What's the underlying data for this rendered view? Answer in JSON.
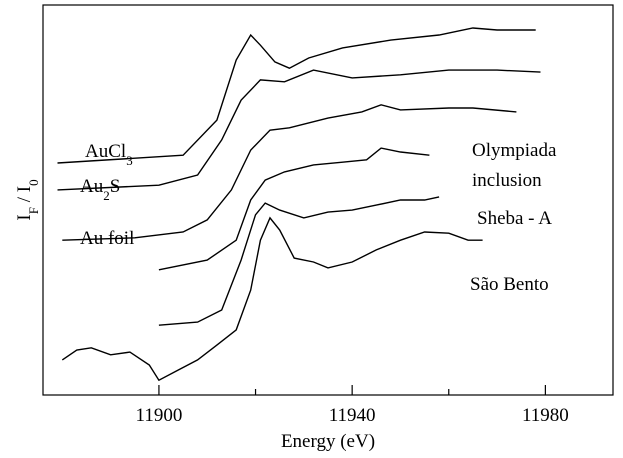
{
  "chart_data": {
    "type": "line",
    "xlabel": "Energy (eV)",
    "ylabel": "IF / I0",
    "xlim": [
      11876,
      11994
    ],
    "xticks": [
      11900,
      11940,
      11980
    ],
    "xminor_ticks": [
      11920,
      11960
    ],
    "ylim": [
      0,
      100
    ],
    "color": "#000000",
    "series": [
      {
        "name": "AuCl3",
        "x": [
          11879,
          11905,
          11912,
          11916,
          11919,
          11921,
          11924,
          11927,
          11931,
          11938,
          11948,
          11958,
          11965,
          11970,
          11978
        ],
        "values": [
          59.5,
          61.5,
          70.5,
          85.9,
          92.3,
          89.7,
          85.4,
          83.8,
          86.4,
          89,
          91,
          92.3,
          94.1,
          93.6,
          93.6
        ]
      },
      {
        "name": "Au2S",
        "x": [
          11879,
          11900,
          11908,
          11913,
          11917,
          11921,
          11926,
          11932,
          11940,
          11950,
          11960,
          11970,
          11979
        ],
        "values": [
          52.6,
          53.8,
          56.4,
          65.4,
          75.6,
          80.8,
          80.3,
          83.3,
          81.3,
          82.1,
          83.3,
          83.3,
          82.8
        ]
      },
      {
        "name": "Au foil",
        "x": [
          11880,
          11895,
          11905,
          11910,
          11915,
          11919,
          11923,
          11927,
          11935,
          11942,
          11946,
          11950,
          11960,
          11965,
          11974
        ],
        "values": [
          39.7,
          40.3,
          41.8,
          44.9,
          52.6,
          62.8,
          67.9,
          68.5,
          71,
          72.6,
          74.4,
          73.1,
          73.6,
          73.6,
          72.6
        ]
      },
      {
        "name": "Olympiada inclusion",
        "x": [
          11900,
          11910,
          11916,
          11919,
          11922,
          11926,
          11932,
          11938,
          11943,
          11946,
          11950,
          11956
        ],
        "values": [
          32.1,
          34.6,
          39.7,
          50,
          55.1,
          57.2,
          59,
          59.7,
          60.3,
          63.3,
          62.3,
          61.5
        ]
      },
      {
        "name": "Sheba - A",
        "x": [
          11900,
          11908,
          11913,
          11917,
          11920,
          11922,
          11925,
          11930,
          11935,
          11940,
          11945,
          11950,
          11955,
          11958
        ],
        "values": [
          17.9,
          18.7,
          21.8,
          34.6,
          46.2,
          49.2,
          47.4,
          45.4,
          46.9,
          47.4,
          48.7,
          50,
          50,
          50.8
        ]
      },
      {
        "name": "São Bento",
        "x": [
          11880,
          11883,
          11886,
          11890,
          11894,
          11898,
          11900,
          11904,
          11908,
          11912,
          11916,
          11919,
          11921,
          11923,
          11925,
          11928,
          11932,
          11935,
          11940,
          11945,
          11950,
          11955,
          11960,
          11964,
          11967
        ],
        "values": [
          9,
          11.5,
          12.1,
          10.3,
          11,
          7.7,
          3.8,
          6.4,
          9,
          12.8,
          16.7,
          26.9,
          39.7,
          45.4,
          42.3,
          35.1,
          34.1,
          32.6,
          34.1,
          37.2,
          39.7,
          41.8,
          41.5,
          39.7,
          39.7
        ]
      }
    ]
  }
}
